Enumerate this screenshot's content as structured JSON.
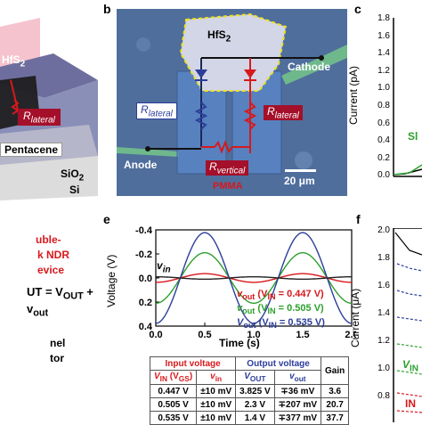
{
  "panel_a": {
    "hfs2": "HfS",
    "hfs2_sub": "2",
    "r_lateral": "R",
    "r_lateral_sub": "lateral",
    "pentacene": "Pentacene",
    "sio2": "SiO",
    "sio2_sub": "2",
    "si": "Si",
    "ndr_line1": "uble-",
    "ndr_line2": "k NDR",
    "ndr_line3": "evice",
    "equation": "UT = V",
    "equation_mid": "OUT",
    "equation_end": " + v",
    "equation_sub": "out",
    "nel": "nel",
    "tor": "tor"
  },
  "panel_b": {
    "letter": "b",
    "hfs2": "HfS",
    "hfs2_sub": "2",
    "cathode": "Cathode",
    "anode": "Anode",
    "r_lateral_left": "R",
    "r_lateral_left_sub": "lateral",
    "r_lateral_right": "R",
    "r_lateral_right_sub": "lateral",
    "r_vertical": "R",
    "r_vertical_sub": "vertical",
    "pmma": "PMMA",
    "scale_bar": "20 μm"
  },
  "panel_c": {
    "letter": "c",
    "ylabel": "Current (pA)",
    "yticks": [
      "1.8",
      "1.6",
      "1.4",
      "1.2",
      "1.0",
      "0.8",
      "0.6",
      "0.4",
      "0.2",
      "0.0"
    ],
    "annotation": "Sl"
  },
  "panel_e": {
    "letter": "e",
    "ylabel": "Voltage (V)",
    "xlabel": "Time (s)",
    "yticks": [
      "0.4",
      "0.2",
      "0.0",
      "-0.2",
      "-0.4"
    ],
    "xticks": [
      "0.0",
      "0.5",
      "1.0",
      "1.5",
      "2.0"
    ],
    "vin_label": "v",
    "vin_sub": "in",
    "legend": [
      {
        "prefix": "v",
        "sub": "out",
        "open": " (V",
        "sub2": "IN",
        "value": " = 0.447 V)",
        "color": "#d7191c"
      },
      {
        "prefix": "v",
        "sub": "out",
        "open": " (V",
        "sub2": "IN",
        "value": " = 0.505 V)",
        "color": "#2ca02c"
      },
      {
        "prefix": "V",
        "sub": "out",
        "open": " (V",
        "sub2": "IN",
        "value": " = 0.535 V)",
        "color": "#2c3e9a"
      }
    ]
  },
  "panel_f": {
    "letter": "f",
    "ylabel": "Current (μA)",
    "yticks": [
      "2.0",
      "1.8",
      "1.6",
      "1.4",
      "1.2",
      "1.0",
      "0.8"
    ],
    "annotation_vin": "V",
    "annotation_vin_sub": "IN",
    "annotation_red": "IN"
  },
  "table": {
    "header_input": "Input voltage",
    "header_output": "Output voltage",
    "header_gain": "Gain",
    "sub_vin_a": "V",
    "sub_vin_a_sub": "IN",
    "sub_vin_b": " (V",
    "sub_vin_b_sub": "GS",
    "sub_vin_close": ")",
    "sub_vin_small": "v",
    "sub_vin_small_sub": "in",
    "sub_vout": "V",
    "sub_vout_sub": "OUT",
    "sub_vout_small": "v",
    "sub_vout_small_sub": "out",
    "rows": [
      {
        "vin": "0.447 V",
        "vin_small": "±10 mV",
        "vout": "3.825 V",
        "vout_small": "∓36 mV",
        "gain": "3.6"
      },
      {
        "vin": "0.505 V",
        "vin_small": "±10 mV",
        "vout": "2.3 V",
        "vout_small": "∓207 mV",
        "gain": "20.7"
      },
      {
        "vin": "0.535 V",
        "vin_small": "±10 mV",
        "vout": "1.4 V",
        "vout_small": "∓377 mV",
        "gain": "37.7"
      }
    ]
  },
  "chart_data": [
    {
      "type": "line",
      "panel": "e",
      "xlabel": "Time (s)",
      "ylabel": "Voltage (V)",
      "xlim": [
        0.0,
        2.0
      ],
      "ylim": [
        -0.4,
        0.4
      ],
      "xticks": [
        0.0,
        0.5,
        1.0,
        1.5,
        2.0
      ],
      "yticks": [
        -0.4,
        -0.2,
        0.0,
        0.2,
        0.4
      ],
      "series": [
        {
          "name": "vout (VIN = 0.447 V)",
          "color": "#d7191c",
          "kind": "sine",
          "amplitude": 0.036,
          "period": 1.0,
          "peak_at": 0.5,
          "offset": 0.0
        },
        {
          "name": "vout (VIN = 0.505 V)",
          "color": "#2ca02c",
          "kind": "sine",
          "amplitude": 0.21,
          "period": 1.0,
          "peak_at": 0.5,
          "offset": 0.0
        },
        {
          "name": "Vout (VIN = 0.535 V)",
          "color": "#2c3e9a",
          "kind": "sine",
          "amplitude": 0.377,
          "period": 1.0,
          "peak_at": 0.5,
          "offset": 0.0
        },
        {
          "name": "vin",
          "color": "#222222",
          "kind": "sine",
          "amplitude": 0.01,
          "period": 1.0,
          "peak_at": 0.0,
          "offset": 0.0
        }
      ]
    }
  ]
}
